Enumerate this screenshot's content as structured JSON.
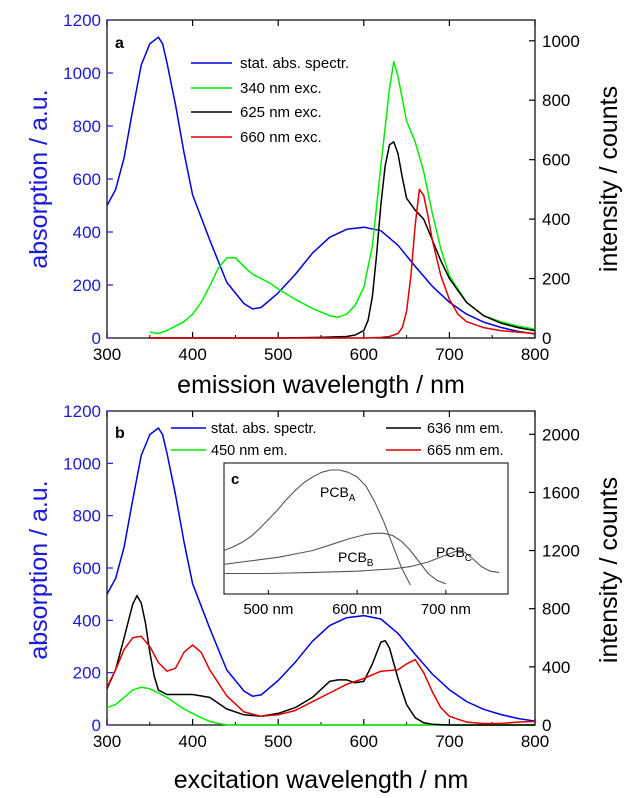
{
  "chart_data": [
    {
      "panel": "a",
      "type": "line",
      "xlabel": "emission wavelength / nm",
      "ylabel_left": "absorption / a.u.",
      "ylabel_right": "intensity / counts",
      "xlim": [
        300,
        800
      ],
      "ylim_left": [
        0,
        1200
      ],
      "ylim_right": [
        0,
        1070
      ],
      "xticks": [
        "300",
        "400",
        "500",
        "600",
        "700",
        "800"
      ],
      "yticks_left": [
        "0",
        "200",
        "400",
        "600",
        "800",
        "1000",
        "1200"
      ],
      "yticks_right": [
        "0",
        "200",
        "400",
        "600",
        "800",
        "1000"
      ],
      "grid": false,
      "legend_position": "top-center",
      "series": [
        {
          "name": "stat. abs. spectr.",
          "axis": "left",
          "color": "#0000dd",
          "x": [
            300,
            310,
            320,
            330,
            340,
            350,
            360,
            365,
            370,
            380,
            390,
            400,
            420,
            440,
            460,
            470,
            480,
            500,
            520,
            540,
            560,
            580,
            600,
            620,
            640,
            660,
            680,
            700,
            720,
            740,
            760,
            780,
            800
          ],
          "y": [
            500,
            560,
            680,
            860,
            1030,
            1110,
            1135,
            1110,
            1040,
            880,
            700,
            540,
            370,
            210,
            130,
            110,
            115,
            170,
            240,
            320,
            380,
            410,
            418,
            405,
            350,
            270,
            195,
            135,
            90,
            60,
            40,
            25,
            15
          ]
        },
        {
          "name": "340 nm exc.",
          "axis": "right",
          "color": "#00ee00",
          "x": [
            350,
            360,
            370,
            380,
            390,
            400,
            410,
            420,
            430,
            440,
            450,
            460,
            470,
            480,
            490,
            500,
            520,
            540,
            560,
            570,
            580,
            590,
            600,
            610,
            620,
            630,
            635,
            640,
            650,
            660,
            670,
            680,
            690,
            700,
            720,
            740,
            760,
            780,
            800
          ],
          "y": [
            20,
            15,
            25,
            40,
            55,
            80,
            120,
            175,
            235,
            270,
            270,
            240,
            215,
            200,
            185,
            165,
            130,
            100,
            75,
            70,
            80,
            110,
            170,
            310,
            580,
            840,
            930,
            880,
            730,
            660,
            560,
            420,
            300,
            210,
            120,
            75,
            55,
            40,
            30
          ]
        },
        {
          "name": "625 nm exc.",
          "axis": "right",
          "color": "#000000",
          "x": [
            350,
            400,
            450,
            500,
            550,
            580,
            590,
            600,
            605,
            610,
            615,
            620,
            625,
            630,
            635,
            640,
            645,
            650,
            660,
            670,
            680,
            690,
            700,
            720,
            740,
            760,
            780,
            800
          ],
          "y": [
            0,
            0,
            0,
            0,
            2,
            5,
            10,
            25,
            60,
            140,
            280,
            450,
            580,
            650,
            660,
            620,
            540,
            470,
            430,
            400,
            330,
            260,
            200,
            120,
            75,
            50,
            35,
            25
          ]
        },
        {
          "name": "660 nm exc.",
          "axis": "right",
          "color": "#dd0000",
          "x": [
            350,
            400,
            500,
            600,
            620,
            630,
            640,
            645,
            650,
            655,
            660,
            665,
            670,
            675,
            680,
            690,
            700,
            710,
            720,
            740,
            760,
            780,
            800
          ],
          "y": [
            0,
            0,
            0,
            0,
            2,
            5,
            15,
            35,
            90,
            210,
            380,
            500,
            480,
            410,
            330,
            210,
            130,
            80,
            55,
            35,
            25,
            20,
            15
          ]
        }
      ]
    },
    {
      "panel": "b",
      "type": "line",
      "xlabel": "excitation wavelength / nm",
      "ylabel_left": "absorption / a.u.",
      "ylabel_right": "intensity / counts",
      "xlim": [
        300,
        800
      ],
      "ylim_left": [
        0,
        1200
      ],
      "ylim_right": [
        0,
        2160
      ],
      "xticks": [
        "300",
        "400",
        "500",
        "600",
        "700",
        "800"
      ],
      "yticks_left": [
        "0",
        "200",
        "400",
        "600",
        "800",
        "1000",
        "1200"
      ],
      "yticks_right": [
        "0",
        "400",
        "800",
        "1200",
        "1600",
        "2000"
      ],
      "grid": false,
      "legend_position": "top",
      "series": [
        {
          "name": "stat. abs. spectr.",
          "axis": "left",
          "color": "#0000dd",
          "x": [
            300,
            310,
            320,
            330,
            340,
            350,
            360,
            365,
            370,
            380,
            390,
            400,
            420,
            440,
            460,
            470,
            480,
            500,
            520,
            540,
            560,
            580,
            600,
            620,
            640,
            660,
            680,
            700,
            720,
            740,
            760,
            780,
            800
          ],
          "y": [
            500,
            560,
            680,
            860,
            1030,
            1110,
            1135,
            1110,
            1040,
            880,
            700,
            540,
            370,
            210,
            130,
            110,
            115,
            170,
            240,
            320,
            380,
            410,
            418,
            405,
            350,
            270,
            195,
            135,
            90,
            60,
            40,
            25,
            15
          ]
        },
        {
          "name": "450 nm em.",
          "axis": "right",
          "color": "#00ee00",
          "x": [
            300,
            310,
            320,
            330,
            340,
            350,
            360,
            370,
            380,
            390,
            400,
            410,
            420,
            430,
            440,
            460,
            500,
            600,
            700,
            800
          ],
          "y": [
            120,
            140,
            190,
            240,
            260,
            250,
            220,
            190,
            150,
            110,
            80,
            50,
            25,
            10,
            2,
            0,
            0,
            0,
            0,
            0
          ]
        },
        {
          "name": "636 nm em.",
          "axis": "right",
          "color": "#000000",
          "x": [
            300,
            310,
            320,
            330,
            335,
            340,
            345,
            350,
            355,
            360,
            370,
            380,
            390,
            400,
            420,
            440,
            460,
            480,
            500,
            520,
            540,
            560,
            570,
            580,
            590,
            600,
            610,
            620,
            625,
            630,
            640,
            650,
            660,
            670,
            680,
            700,
            720,
            800
          ],
          "y": [
            250,
            380,
            600,
            830,
            890,
            840,
            700,
            500,
            340,
            240,
            210,
            210,
            210,
            210,
            190,
            110,
            70,
            60,
            80,
            120,
            190,
            300,
            310,
            310,
            290,
            300,
            420,
            570,
            580,
            530,
            320,
            140,
            50,
            15,
            5,
            0,
            0,
            0
          ]
        },
        {
          "name": "665 nm em.",
          "axis": "right",
          "color": "#dd0000",
          "x": [
            300,
            310,
            320,
            330,
            340,
            350,
            360,
            370,
            380,
            390,
            400,
            410,
            420,
            440,
            460,
            480,
            500,
            520,
            540,
            560,
            580,
            600,
            620,
            640,
            650,
            660,
            670,
            680,
            690,
            700,
            720,
            740,
            760,
            780,
            800
          ],
          "y": [
            260,
            380,
            520,
            600,
            610,
            540,
            430,
            370,
            390,
            500,
            550,
            500,
            380,
            200,
            90,
            60,
            70,
            100,
            160,
            220,
            280,
            320,
            370,
            380,
            420,
            450,
            360,
            230,
            120,
            60,
            20,
            10,
            10,
            20,
            25
          ]
        }
      ]
    },
    {
      "panel": "c",
      "type": "line",
      "xticks": [
        "500 nm",
        "600 nm",
        "700 nm"
      ],
      "xlim": [
        450,
        770
      ],
      "series": [
        {
          "name": "PCB",
          "subscript": "A",
          "color": "#555555",
          "x": [
            450,
            460,
            470,
            480,
            490,
            500,
            510,
            520,
            530,
            540,
            550,
            560,
            570,
            580,
            590,
            600,
            610,
            620,
            630,
            640,
            650,
            660
          ],
          "y": [
            0.3,
            0.33,
            0.37,
            0.42,
            0.49,
            0.57,
            0.65,
            0.74,
            0.82,
            0.89,
            0.94,
            0.98,
            1.0,
            1.0,
            0.98,
            0.94,
            0.86,
            0.72,
            0.55,
            0.35,
            0.15,
            0.0
          ]
        },
        {
          "name": "PCB",
          "subscript": "B",
          "color": "#555555",
          "x": [
            450,
            470,
            490,
            510,
            530,
            550,
            570,
            590,
            610,
            620,
            630,
            640,
            650,
            660,
            670,
            680,
            690,
            700
          ],
          "y": [
            0.18,
            0.2,
            0.22,
            0.24,
            0.27,
            0.3,
            0.35,
            0.4,
            0.44,
            0.45,
            0.45,
            0.43,
            0.38,
            0.3,
            0.2,
            0.1,
            0.04,
            0.01
          ]
        },
        {
          "name": "PCB",
          "subscript": "C",
          "color": "#555555",
          "x": [
            450,
            500,
            550,
            600,
            620,
            640,
            660,
            680,
            690,
            700,
            710,
            715,
            720,
            730,
            740,
            750,
            760
          ],
          "y": [
            0.1,
            0.1,
            0.11,
            0.12,
            0.13,
            0.14,
            0.16,
            0.2,
            0.23,
            0.26,
            0.29,
            0.3,
            0.29,
            0.23,
            0.16,
            0.12,
            0.11
          ]
        }
      ]
    }
  ]
}
